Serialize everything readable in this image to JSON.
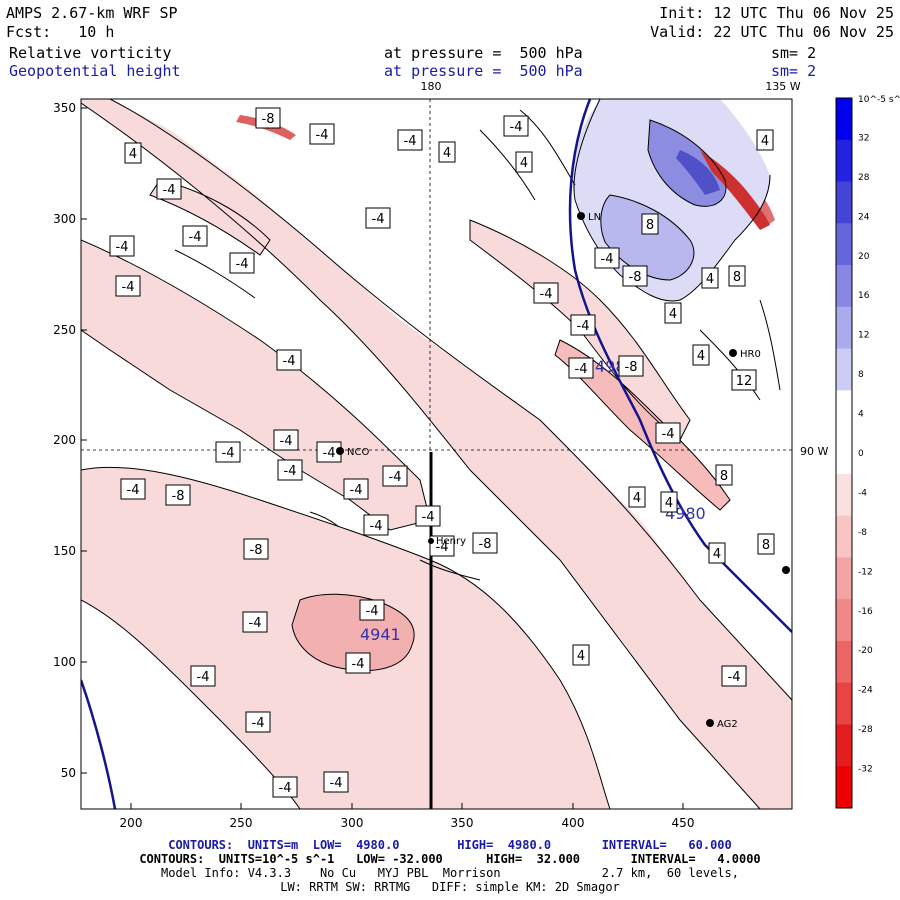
{
  "header": {
    "model": "AMPS 2.67-km WRF SP",
    "init": "Init: 12 UTC Thu 06 Nov 25",
    "fcst": "Fcst:   10 h",
    "valid": "Valid: 22 UTC Thu 06 Nov 25",
    "field1": {
      "name": "Relative vorticity",
      "level": "at pressure =  500 hPa",
      "sm": "sm= 2"
    },
    "field2": {
      "name": "Geopotential height",
      "level": "at pressure =  500 hPa",
      "sm": "sm= 2"
    }
  },
  "map_labels": {
    "lon_top": "180",
    "lon_top_right": "135 W",
    "lat_right": "90 W",
    "x_ticks": [
      "200",
      "250",
      "300",
      "350",
      "400",
      "450"
    ],
    "y_ticks": [
      "350",
      "300",
      "250",
      "200",
      "150",
      "100",
      "50"
    ]
  },
  "height_contours": {
    "label_4980_a": "4980",
    "label_4980_b": "4980",
    "label_4941": "4941",
    "colors": {
      "height": "#14148c",
      "negative": "#f7c8c8",
      "positive": "#a8a8e8"
    }
  },
  "stations": [
    "NCO",
    "Henry",
    "HR0",
    "AG2",
    "LN"
  ],
  "vorticity_labels": [
    "-8",
    "-4",
    "-4",
    "4",
    "4",
    "-4",
    "-4",
    "-4",
    "-4",
    "-4",
    "-4",
    "-4",
    "-4",
    "-4",
    "-4",
    "-4",
    "-4",
    "-4",
    "-4",
    "-8",
    "-4",
    "-4",
    "-4",
    "-8",
    "-8",
    "-4",
    "-4",
    "-4",
    "-4",
    "-4",
    "-4",
    "-4",
    "-4",
    "-4",
    "-4",
    "-8",
    "-4",
    "-8",
    "4",
    "4",
    "4",
    "4",
    "4",
    "8",
    "12",
    "8",
    "8",
    "4",
    "4",
    "4",
    "8",
    "4",
    "-4",
    "-4",
    "-4"
  ],
  "colorbar": {
    "unit": "10^-5 s^-1",
    "labels": [
      "32",
      "28",
      "24",
      "20",
      "16",
      "12",
      "8",
      "4",
      "0",
      "-4",
      "-8",
      "-12",
      "-16",
      "-20",
      "-24",
      "-28",
      "-32"
    ]
  },
  "footer": {
    "line1": "CONTOURS:  UNITS=m  LOW=  4980.0        HIGH=  4980.0       INTERVAL=   60.000",
    "line2": "CONTOURS:  UNITS=10^-5 s^-1   LOW= -32.000      HIGH=  32.000       INTERVAL=   4.0000",
    "line3": "Model Info: V4.3.3    No Cu   MYJ PBL  Morrison              2.7 km,  60 levels,",
    "line4": "LW: RRTM SW: RRTMG   DIFF: simple KM: 2D Smagor"
  }
}
